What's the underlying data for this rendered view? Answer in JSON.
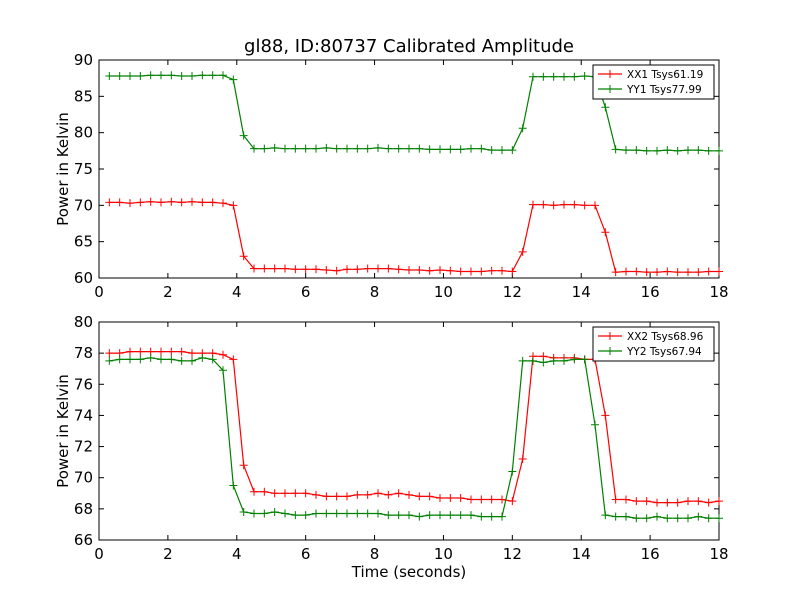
{
  "title": "gl88, ID:80737 Calibrated Amplitude",
  "chart_data": [
    {
      "type": "line",
      "title": "gl88, ID:80737 Calibrated Amplitude",
      "xlabel": "",
      "ylabel": "Power in Kelvin",
      "xlim": [
        0,
        18
      ],
      "ylim": [
        60,
        90
      ],
      "xticks": [
        0,
        2,
        4,
        6,
        8,
        10,
        12,
        14,
        16,
        18
      ],
      "yticks": [
        60,
        65,
        70,
        75,
        80,
        85,
        90
      ],
      "grid": false,
      "legend": "top-right",
      "x": [
        0.3,
        0.6,
        0.9,
        1.2,
        1.5,
        1.8,
        2.1,
        2.4,
        2.7,
        3.0,
        3.3,
        3.6,
        3.9,
        4.2,
        4.5,
        4.8,
        5.1,
        5.4,
        5.7,
        6.0,
        6.3,
        6.6,
        6.9,
        7.2,
        7.5,
        7.8,
        8.1,
        8.4,
        8.7,
        9.0,
        9.3,
        9.6,
        9.9,
        10.2,
        10.5,
        10.8,
        11.1,
        11.4,
        11.7,
        12.0,
        12.3,
        12.6,
        12.9,
        13.2,
        13.5,
        13.8,
        14.1,
        14.4,
        14.7,
        15.0,
        15.3,
        15.6,
        15.9,
        16.2,
        16.5,
        16.8,
        17.1,
        17.4,
        17.7,
        18.0
      ],
      "series": [
        {
          "name": "XX1 Tsys61.19",
          "color": "#ff0000",
          "values": [
            70.4,
            70.4,
            70.3,
            70.4,
            70.5,
            70.4,
            70.5,
            70.4,
            70.5,
            70.4,
            70.4,
            70.3,
            70.0,
            63.0,
            61.3,
            61.3,
            61.3,
            61.3,
            61.2,
            61.2,
            61.2,
            61.1,
            61.0,
            61.2,
            61.2,
            61.3,
            61.3,
            61.3,
            61.2,
            61.1,
            61.1,
            61.0,
            61.1,
            61.0,
            60.9,
            60.9,
            60.9,
            61.0,
            61.0,
            60.9,
            63.6,
            70.1,
            70.1,
            70.0,
            70.1,
            70.1,
            70.0,
            70.0,
            66.3,
            60.8,
            60.9,
            60.9,
            60.8,
            60.8,
            60.9,
            60.8,
            60.8,
            60.8,
            60.9,
            60.9
          ]
        },
        {
          "name": "YY1 Tsys77.99",
          "color": "#008000",
          "values": [
            87.8,
            87.8,
            87.8,
            87.8,
            87.9,
            87.9,
            87.9,
            87.8,
            87.8,
            87.9,
            87.9,
            87.9,
            87.3,
            79.6,
            77.8,
            77.8,
            77.9,
            77.8,
            77.8,
            77.8,
            77.8,
            77.9,
            77.8,
            77.8,
            77.8,
            77.8,
            77.9,
            77.8,
            77.8,
            77.8,
            77.8,
            77.7,
            77.7,
            77.7,
            77.7,
            77.8,
            77.8,
            77.6,
            77.6,
            77.6,
            80.6,
            87.7,
            87.7,
            87.7,
            87.7,
            87.7,
            87.8,
            87.7,
            83.5,
            77.7,
            77.6,
            77.6,
            77.5,
            77.5,
            77.6,
            77.5,
            77.6,
            77.6,
            77.5,
            77.5
          ]
        }
      ]
    },
    {
      "type": "line",
      "title": "",
      "xlabel": "Time (seconds)",
      "ylabel": "Power in Kelvin",
      "xlim": [
        0,
        18
      ],
      "ylim": [
        66,
        80
      ],
      "xticks": [
        0,
        2,
        4,
        6,
        8,
        10,
        12,
        14,
        16,
        18
      ],
      "yticks": [
        66,
        68,
        70,
        72,
        74,
        76,
        78,
        80
      ],
      "grid": false,
      "legend": "top-right",
      "x": [
        0.3,
        0.6,
        0.9,
        1.2,
        1.5,
        1.8,
        2.1,
        2.4,
        2.7,
        3.0,
        3.3,
        3.6,
        3.9,
        4.2,
        4.5,
        4.8,
        5.1,
        5.4,
        5.7,
        6.0,
        6.3,
        6.6,
        6.9,
        7.2,
        7.5,
        7.8,
        8.1,
        8.4,
        8.7,
        9.0,
        9.3,
        9.6,
        9.9,
        10.2,
        10.5,
        10.8,
        11.1,
        11.4,
        11.7,
        12.0,
        12.3,
        12.6,
        12.9,
        13.2,
        13.5,
        13.8,
        14.1,
        14.4,
        14.7,
        15.0,
        15.3,
        15.6,
        15.9,
        16.2,
        16.5,
        16.8,
        17.1,
        17.4,
        17.7,
        18.0
      ],
      "series": [
        {
          "name": "XX2 Tsys68.96",
          "color": "#ff0000",
          "values": [
            78.0,
            78.0,
            78.1,
            78.1,
            78.1,
            78.1,
            78.1,
            78.1,
            78.0,
            78.0,
            78.0,
            77.9,
            77.6,
            70.8,
            69.1,
            69.1,
            69.0,
            69.0,
            69.0,
            69.0,
            68.9,
            68.8,
            68.8,
            68.8,
            68.9,
            68.9,
            69.0,
            68.9,
            69.0,
            68.9,
            68.8,
            68.8,
            68.7,
            68.7,
            68.7,
            68.6,
            68.6,
            68.6,
            68.6,
            68.5,
            71.2,
            77.8,
            77.8,
            77.7,
            77.7,
            77.7,
            77.6,
            77.6,
            74.0,
            68.6,
            68.6,
            68.5,
            68.5,
            68.4,
            68.4,
            68.4,
            68.5,
            68.5,
            68.4,
            68.5
          ]
        },
        {
          "name": "YY2 Tsys67.94",
          "color": "#008000",
          "values": [
            77.5,
            77.6,
            77.6,
            77.6,
            77.7,
            77.6,
            77.6,
            77.5,
            77.5,
            77.7,
            77.6,
            76.9,
            69.5,
            67.8,
            67.7,
            67.7,
            67.8,
            67.7,
            67.6,
            67.6,
            67.7,
            67.7,
            67.7,
            67.7,
            67.7,
            67.7,
            67.7,
            67.6,
            67.6,
            67.6,
            67.5,
            67.6,
            67.6,
            67.6,
            67.6,
            67.6,
            67.5,
            67.5,
            67.5,
            70.4,
            77.5,
            77.5,
            77.4,
            77.5,
            77.5,
            77.6,
            77.6,
            73.4,
            67.6,
            67.5,
            67.5,
            67.4,
            67.4,
            67.5,
            67.4,
            67.4,
            67.4,
            67.5,
            67.4,
            67.4
          ]
        }
      ]
    }
  ]
}
